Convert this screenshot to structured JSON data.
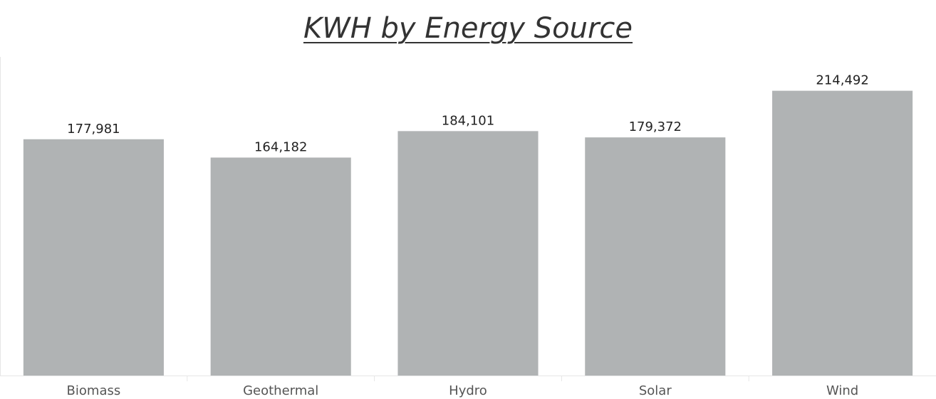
{
  "chart_data": {
    "type": "bar",
    "title": "KWH by Energy Source",
    "categories": [
      "Biomass",
      "Geothermal",
      "Hydro",
      "Solar",
      "Wind"
    ],
    "values": [
      177981,
      164182,
      184101,
      179372,
      214492
    ],
    "value_labels": [
      "177,981",
      "164,182",
      "184,101",
      "179,372",
      "214,492"
    ],
    "xlabel": "",
    "ylabel": "",
    "ylim": [
      0,
      240000
    ],
    "grid": false,
    "legend": "none",
    "colors": {
      "bar": "#b0b3b4",
      "axis": "#e6e6e6"
    }
  }
}
